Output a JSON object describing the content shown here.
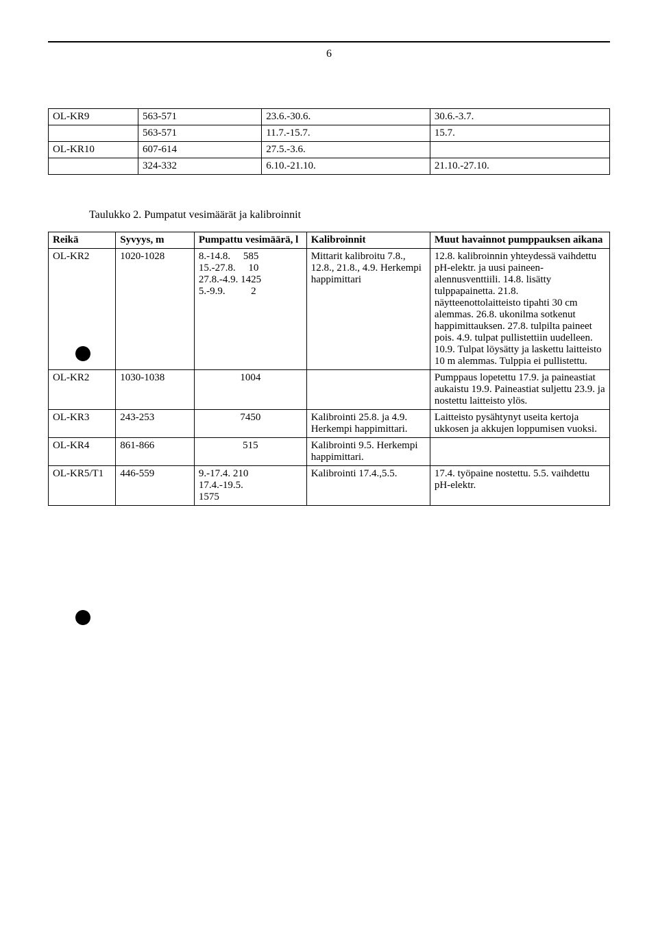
{
  "page_number": "6",
  "table1": {
    "rows": [
      [
        "OL-KR9",
        "563-571",
        "23.6.-30.6.",
        "30.6.-3.7."
      ],
      [
        "",
        "563-571",
        "11.7.-15.7.",
        "15.7."
      ],
      [
        "OL-KR10",
        "607-614",
        "27.5.-3.6.",
        ""
      ],
      [
        "",
        "324-332",
        "6.10.-21.10.",
        "21.10.-27.10."
      ]
    ]
  },
  "caption2": "Taulukko 2. Pumpatut vesimäärät ja kalibroinnit",
  "table2": {
    "headers": [
      "Reikä",
      "Syvyys, m",
      "Pumpattu vesimäärä, l",
      "Kalibroinnit",
      "Muut havainnot pumppauksen aikana"
    ],
    "rows": [
      {
        "reika": "OL-KR2",
        "syvyys": "1020-1028",
        "pumpattu": "8.-14.8.     585\n15.-27.8.     10\n27.8.-4.9. 1425\n5.-9.9.          2",
        "kalibroinnit": "Mittarit kalibroitu 7.8., 12.8., 21.8., 4.9. Herkempi happimittari",
        "havainnot": "12.8. kalibroinnin yhteydessä vaihdettu pH-elektr. ja uusi paineen-alennusventtiili. 14.8. lisätty tulppapainetta. 21.8. näytteenottolaitteisto tipahti 30 cm alemmas. 26.8. ukonilma sotkenut happimittauksen. 27.8. tulpilta paineet pois. 4.9. tulpat pullistettiin uudelleen. 10.9. Tulpat löysätty ja laskettu laitteisto 10 m alemmas. Tulppia ei pullistettu."
      },
      {
        "reika": "OL-KR2",
        "syvyys": "1030-1038",
        "pumpattu": "1004",
        "kalibroinnit": "",
        "havainnot": "Pumppaus lopetettu 17.9. ja paineastiat aukaistu 19.9. Paineastiat suljettu 23.9. ja nostettu laitteisto ylös."
      },
      {
        "reika": "OL-KR3",
        "syvyys": "243-253",
        "pumpattu": "7450",
        "kalibroinnit": "Kalibrointi 25.8. ja 4.9. Herkempi happimittari.",
        "havainnot": "Laitteisto pysähtynyt useita kertoja ukkosen ja akkujen loppumisen vuoksi."
      },
      {
        "reika": "OL-KR4",
        "syvyys": "861-866",
        "pumpattu": "515",
        "kalibroinnit": "Kalibrointi 9.5. Herkempi happimittari.",
        "havainnot": ""
      },
      {
        "reika": "OL-KR5/T1",
        "syvyys": "446-559",
        "pumpattu": "9.-17.4. 210\n17.4.-19.5.\n1575",
        "kalibroinnit": "Kalibrointi 17.4.,5.5.",
        "havainnot": "17.4. työpaine nostettu. 5.5. vaihdettu pH-elektr."
      }
    ]
  }
}
